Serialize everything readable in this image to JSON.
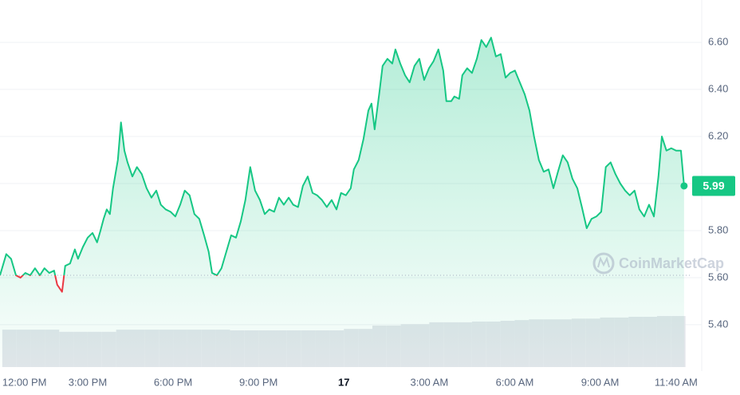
{
  "chart_data": {
    "type": "line",
    "x": [
      -0.08,
      0.14,
      0.31,
      0.48,
      0.64,
      0.81,
      0.98,
      1.15,
      1.32,
      1.48,
      1.65,
      1.82,
      1.93,
      2.1,
      2.21,
      2.38,
      2.55,
      2.66,
      2.83,
      3.0,
      3.17,
      3.33,
      3.45,
      3.56,
      3.67,
      3.78,
      3.89,
      4.06,
      4.17,
      4.29,
      4.4,
      4.57,
      4.73,
      4.9,
      5.07,
      5.24,
      5.41,
      5.57,
      5.74,
      5.91,
      6.08,
      6.25,
      6.41,
      6.58,
      6.75,
      6.92,
      7.09,
      7.25,
      7.37,
      7.54,
      7.7,
      7.87,
      8.04,
      8.21,
      8.38,
      8.54,
      8.71,
      8.88,
      9.05,
      9.22,
      9.38,
      9.55,
      9.72,
      9.89,
      10.06,
      10.22,
      10.39,
      10.56,
      10.73,
      10.9,
      11.06,
      11.23,
      11.4,
      11.57,
      11.74,
      11.9,
      12.07,
      12.24,
      12.35,
      12.52,
      12.69,
      12.86,
      12.97,
      13.08,
      13.25,
      13.36,
      13.53,
      13.7,
      13.81,
      13.98,
      14.15,
      14.31,
      14.48,
      14.65,
      14.82,
      14.99,
      15.15,
      15.32,
      15.49,
      15.6,
      15.77,
      15.88,
      16.05,
      16.16,
      16.33,
      16.5,
      16.67,
      16.83,
      17.0,
      17.17,
      17.34,
      17.51,
      17.68,
      17.84,
      18.01,
      18.18,
      18.35,
      18.52,
      18.68,
      18.85,
      19.02,
      19.19,
      19.36,
      19.52,
      19.69,
      19.86,
      20.03,
      20.2,
      20.36,
      20.53,
      20.7,
      20.87,
      21.04,
      21.2,
      21.37,
      21.54,
      21.71,
      21.88,
      22.04,
      22.21,
      22.38,
      22.55,
      22.72,
      22.89,
      23.05,
      23.17,
      23.33,
      23.5,
      23.67,
      23.84,
      23.95
    ],
    "series": [
      {
        "color": "#16c784",
        "down_color": "#ea3943",
        "values": [
          5.61,
          5.7,
          5.68,
          5.61,
          5.6,
          5.62,
          5.61,
          5.64,
          5.61,
          5.64,
          5.62,
          5.63,
          5.57,
          5.54,
          5.65,
          5.66,
          5.72,
          5.68,
          5.73,
          5.77,
          5.79,
          5.75,
          5.8,
          5.85,
          5.89,
          5.87,
          5.98,
          6.1,
          6.26,
          6.14,
          6.09,
          6.03,
          6.07,
          6.04,
          5.98,
          5.94,
          5.97,
          5.91,
          5.89,
          5.88,
          5.86,
          5.91,
          5.97,
          5.95,
          5.87,
          5.85,
          5.78,
          5.71,
          5.62,
          5.61,
          5.64,
          5.71,
          5.78,
          5.77,
          5.84,
          5.93,
          6.07,
          5.97,
          5.93,
          5.87,
          5.89,
          5.88,
          5.94,
          5.91,
          5.94,
          5.91,
          5.9,
          5.99,
          6.03,
          5.96,
          5.95,
          5.93,
          5.9,
          5.93,
          5.89,
          5.96,
          5.95,
          5.98,
          6.06,
          6.1,
          6.19,
          6.31,
          6.34,
          6.23,
          6.39,
          6.5,
          6.53,
          6.51,
          6.57,
          6.51,
          6.46,
          6.43,
          6.5,
          6.53,
          6.44,
          6.49,
          6.52,
          6.57,
          6.48,
          6.35,
          6.35,
          6.37,
          6.36,
          6.46,
          6.49,
          6.47,
          6.53,
          6.61,
          6.58,
          6.62,
          6.54,
          6.55,
          6.45,
          6.47,
          6.48,
          6.43,
          6.38,
          6.31,
          6.2,
          6.1,
          6.05,
          6.06,
          5.98,
          6.05,
          6.12,
          6.09,
          6.02,
          5.98,
          5.9,
          5.81,
          5.85,
          5.86,
          5.88,
          6.07,
          6.09,
          6.04,
          6.0,
          5.97,
          5.95,
          5.97,
          5.89,
          5.86,
          5.91,
          5.86,
          6.03,
          6.2,
          6.14,
          6.15,
          6.14,
          6.14,
          5.99
        ]
      }
    ],
    "baseline": 5.61,
    "volume": {
      "color": "#e3e6eb",
      "x": [
        0,
        0.5,
        1,
        1.5,
        2,
        2.5,
        3,
        3.5,
        4,
        4.5,
        5,
        5.5,
        6,
        6.5,
        7,
        7.5,
        8,
        8.5,
        9,
        9.5,
        10,
        10.5,
        11,
        11.5,
        12,
        12.5,
        13,
        13.5,
        14,
        14.5,
        15,
        15.5,
        16,
        16.5,
        17,
        17.5,
        18,
        18.5,
        19,
        19.5,
        20,
        20.5,
        21,
        21.5,
        22,
        22.5,
        23,
        23.5
      ],
      "values": [
        102,
        102,
        102,
        102,
        96,
        96,
        96,
        96,
        102,
        102,
        102,
        102,
        102,
        102,
        102,
        102,
        100,
        100,
        100,
        100,
        100,
        100,
        100,
        100,
        104,
        104,
        113,
        113,
        117,
        117,
        122,
        122,
        122,
        124,
        124,
        126,
        128,
        130,
        130,
        130,
        132,
        132,
        135,
        135,
        137,
        137,
        139,
        139
      ],
      "ylim": [
        0,
        1000
      ]
    },
    "xlim": [
      -0.08,
      24.15
    ],
    "xticks": [
      {
        "value": 0,
        "label": "12:00 PM"
      },
      {
        "value": 3,
        "label": "3:00 PM"
      },
      {
        "value": 6,
        "label": "6:00 PM"
      },
      {
        "value": 9,
        "label": "9:00 PM"
      },
      {
        "value": 12,
        "label": "17"
      },
      {
        "value": 15,
        "label": "3:00 AM"
      },
      {
        "value": 18,
        "label": "6:00 AM"
      },
      {
        "value": 21,
        "label": "9:00 AM"
      },
      {
        "value": 23.67,
        "label": "11:40 AM"
      }
    ],
    "ylim": [
      5.22,
      6.78
    ],
    "yticks": [
      {
        "value": 5.4,
        "label": "5.40"
      },
      {
        "value": 5.6,
        "label": "5.60"
      },
      {
        "value": 5.8,
        "label": "5.80"
      },
      {
        "value": 6.0,
        "label": "6.00"
      },
      {
        "value": 6.2,
        "label": "6.20"
      },
      {
        "value": 6.4,
        "label": "6.40"
      },
      {
        "value": 6.6,
        "label": "6.60"
      }
    ],
    "grid": true,
    "watermark": "CoinMarketCap"
  }
}
